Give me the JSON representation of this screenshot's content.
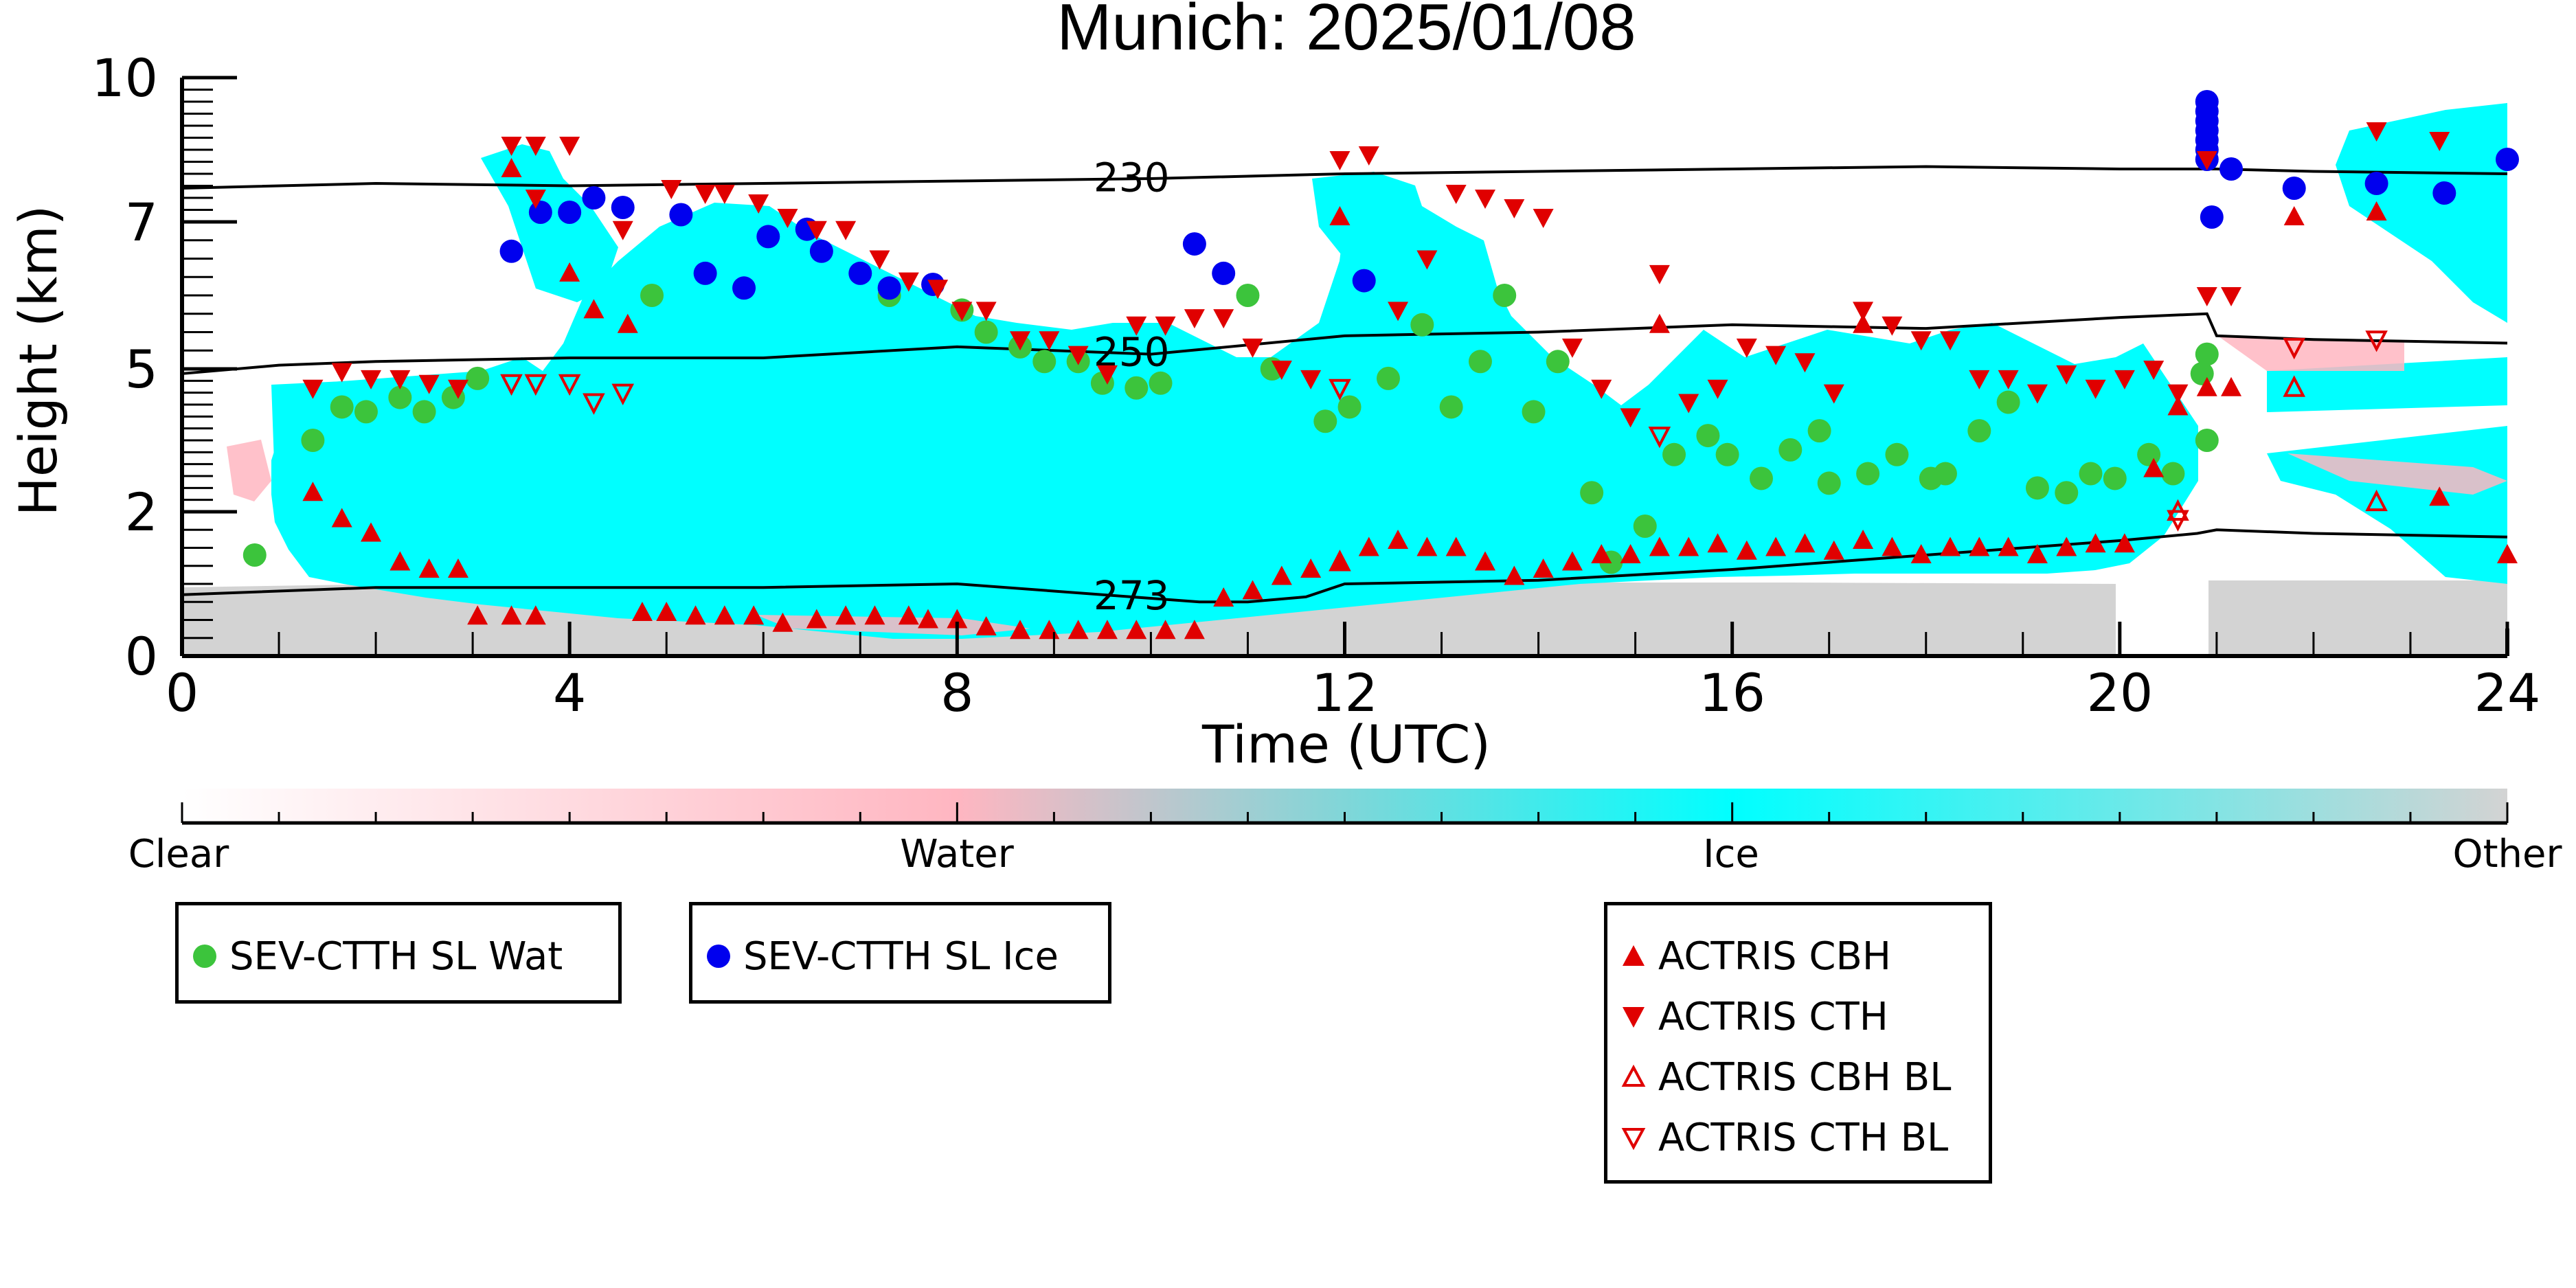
{
  "chart_data": {
    "type": "scatter",
    "title": "Munich: 2025/01/08",
    "xlabel": "Time (UTC)",
    "ylabel": "Height (km)",
    "xlim": [
      0,
      24
    ],
    "ylim": [
      0,
      10
    ],
    "x_ticks": [
      "0",
      "4",
      "8",
      "12",
      "16",
      "20",
      "24"
    ],
    "y_ticks": [
      "0",
      "2",
      "5",
      "7",
      "10"
    ],
    "y_tick_values": [
      0,
      2,
      5,
      7,
      10
    ],
    "colorbar": {
      "labels": [
        "Clear",
        "Water",
        "Ice",
        "Other"
      ],
      "colors": [
        "#ffffff",
        "#ffb6c1",
        "#00ffff",
        "#d3d3d3"
      ]
    },
    "contours": [
      {
        "label": "230",
        "x": [
          0,
          2,
          4,
          6,
          8,
          10,
          12,
          14,
          16,
          18,
          20,
          21,
          22,
          24
        ],
        "y": [
          7.7,
          7.8,
          7.75,
          7.8,
          7.85,
          7.9,
          8.0,
          8.05,
          8.1,
          8.15,
          8.1,
          8.1,
          8.05,
          8.0
        ]
      },
      {
        "label": "250",
        "x": [
          0,
          1,
          2,
          4,
          6,
          8,
          9,
          10,
          12,
          14,
          16,
          18,
          20,
          20.9,
          21,
          22,
          24
        ],
        "y": [
          4.9,
          5.05,
          5.1,
          5.15,
          5.15,
          5.3,
          5.25,
          5.2,
          5.45,
          5.5,
          5.6,
          5.55,
          5.7,
          5.75,
          5.45,
          5.4,
          5.35
        ]
      },
      {
        "label": "273",
        "x": [
          0,
          2,
          4,
          6,
          8,
          10,
          10.5,
          11,
          11.6,
          12,
          14,
          16,
          18,
          20,
          20.8,
          21,
          22,
          24
        ],
        "y": [
          0.85,
          0.95,
          0.95,
          0.95,
          1.0,
          0.8,
          0.75,
          0.75,
          0.82,
          1.0,
          1.05,
          1.2,
          1.4,
          1.6,
          1.7,
          1.75,
          1.7,
          1.65
        ]
      }
    ],
    "series": [
      {
        "name": "SEV-CTTH SL Wat",
        "color": "#3cc43c",
        "marker": "circle",
        "points": [
          [
            0.75,
            1.4
          ],
          [
            1.35,
            3.5
          ],
          [
            1.65,
            4.2
          ],
          [
            1.9,
            4.1
          ],
          [
            2.25,
            4.4
          ],
          [
            2.5,
            4.1
          ],
          [
            2.8,
            4.4
          ],
          [
            3.05,
            4.8
          ],
          [
            4.85,
            6.0
          ],
          [
            7.3,
            6.0
          ],
          [
            8.05,
            5.8
          ],
          [
            8.3,
            5.5
          ],
          [
            8.65,
            5.3
          ],
          [
            8.9,
            5.1
          ],
          [
            9.25,
            5.1
          ],
          [
            9.5,
            4.7
          ],
          [
            9.85,
            4.6
          ],
          [
            10.1,
            4.7
          ],
          [
            11.0,
            6.0
          ],
          [
            11.25,
            5.0
          ],
          [
            11.8,
            3.9
          ],
          [
            12.05,
            4.2
          ],
          [
            12.45,
            4.8
          ],
          [
            12.8,
            5.6
          ],
          [
            13.1,
            4.2
          ],
          [
            13.4,
            5.1
          ],
          [
            13.65,
            6.0
          ],
          [
            13.95,
            4.1
          ],
          [
            14.2,
            5.1
          ],
          [
            14.55,
            2.4
          ],
          [
            14.75,
            1.3
          ],
          [
            15.1,
            1.8
          ],
          [
            15.4,
            3.2
          ],
          [
            15.75,
            3.6
          ],
          [
            15.95,
            3.2
          ],
          [
            16.3,
            2.7
          ],
          [
            16.6,
            3.3
          ],
          [
            16.9,
            3.7
          ],
          [
            17.0,
            2.6
          ],
          [
            17.4,
            2.8
          ],
          [
            17.7,
            3.2
          ],
          [
            18.05,
            2.7
          ],
          [
            18.2,
            2.8
          ],
          [
            18.55,
            3.7
          ],
          [
            18.85,
            4.3
          ],
          [
            19.15,
            2.5
          ],
          [
            19.45,
            2.4
          ],
          [
            19.7,
            2.8
          ],
          [
            19.95,
            2.7
          ],
          [
            20.3,
            3.2
          ],
          [
            20.55,
            2.8
          ],
          [
            20.85,
            4.9
          ],
          [
            20.9,
            5.2
          ],
          [
            20.9,
            3.5
          ]
        ]
      },
      {
        "name": "SEV-CTTH SL Ice",
        "color": "#0000ee",
        "marker": "circle",
        "points": [
          [
            3.4,
            6.6
          ],
          [
            3.7,
            7.2
          ],
          [
            4.0,
            7.2
          ],
          [
            4.25,
            7.5
          ],
          [
            4.55,
            7.3
          ],
          [
            5.15,
            7.15
          ],
          [
            5.4,
            6.3
          ],
          [
            5.8,
            6.1
          ],
          [
            6.05,
            6.8
          ],
          [
            6.45,
            6.9
          ],
          [
            6.6,
            6.6
          ],
          [
            7.0,
            6.3
          ],
          [
            7.3,
            6.1
          ],
          [
            7.75,
            6.15
          ],
          [
            10.45,
            6.7
          ],
          [
            10.75,
            6.3
          ],
          [
            12.2,
            6.2
          ],
          [
            20.9,
            9.5
          ],
          [
            20.9,
            9.3
          ],
          [
            20.9,
            9.1
          ],
          [
            20.9,
            8.9
          ],
          [
            20.9,
            8.7
          ],
          [
            20.9,
            8.5
          ],
          [
            20.9,
            8.3
          ],
          [
            20.95,
            7.1
          ],
          [
            21.15,
            8.1
          ],
          [
            21.8,
            7.7
          ],
          [
            22.65,
            7.8
          ],
          [
            23.35,
            7.6
          ],
          [
            24.0,
            8.3
          ]
        ]
      },
      {
        "name": "ACTRIS CBH",
        "color": "#e00000",
        "marker": "triangle-up",
        "points": [
          [
            1.35,
            2.4
          ],
          [
            1.65,
            1.9
          ],
          [
            1.95,
            1.7
          ],
          [
            2.25,
            1.3
          ],
          [
            2.55,
            1.2
          ],
          [
            2.85,
            1.2
          ],
          [
            3.05,
            0.55
          ],
          [
            3.4,
            0.55
          ],
          [
            3.65,
            0.55
          ],
          [
            3.4,
            8.1
          ],
          [
            4.0,
            6.3
          ],
          [
            4.25,
            5.8
          ],
          [
            4.6,
            5.6
          ],
          [
            4.75,
            0.6
          ],
          [
            5.0,
            0.6
          ],
          [
            5.3,
            0.55
          ],
          [
            5.6,
            0.55
          ],
          [
            5.9,
            0.55
          ],
          [
            6.2,
            0.45
          ],
          [
            6.55,
            0.5
          ],
          [
            6.85,
            0.55
          ],
          [
            7.15,
            0.55
          ],
          [
            7.5,
            0.55
          ],
          [
            7.7,
            0.5
          ],
          [
            8.0,
            0.5
          ],
          [
            8.3,
            0.4
          ],
          [
            8.65,
            0.35
          ],
          [
            8.95,
            0.35
          ],
          [
            9.25,
            0.35
          ],
          [
            9.55,
            0.35
          ],
          [
            9.85,
            0.35
          ],
          [
            10.15,
            0.35
          ],
          [
            10.45,
            0.35
          ],
          [
            10.75,
            0.8
          ],
          [
            11.05,
            0.9
          ],
          [
            11.35,
            1.1
          ],
          [
            11.65,
            1.2
          ],
          [
            11.95,
            1.3
          ],
          [
            12.25,
            1.5
          ],
          [
            12.55,
            1.6
          ],
          [
            12.85,
            1.5
          ],
          [
            13.15,
            1.5
          ],
          [
            13.45,
            1.3
          ],
          [
            13.75,
            1.1
          ],
          [
            14.05,
            1.2
          ],
          [
            14.35,
            1.3
          ],
          [
            14.65,
            1.4
          ],
          [
            14.95,
            1.4
          ],
          [
            15.25,
            1.5
          ],
          [
            15.55,
            1.5
          ],
          [
            15.85,
            1.55
          ],
          [
            16.15,
            1.45
          ],
          [
            16.45,
            1.5
          ],
          [
            16.75,
            1.55
          ],
          [
            17.05,
            1.45
          ],
          [
            17.35,
            1.6
          ],
          [
            17.65,
            1.5
          ],
          [
            17.95,
            1.4
          ],
          [
            18.25,
            1.5
          ],
          [
            18.55,
            1.5
          ],
          [
            18.85,
            1.5
          ],
          [
            19.15,
            1.4
          ],
          [
            19.45,
            1.5
          ],
          [
            19.75,
            1.55
          ],
          [
            20.05,
            1.55
          ],
          [
            20.35,
            2.9
          ],
          [
            20.6,
            4.2
          ],
          [
            20.9,
            4.6
          ],
          [
            21.15,
            4.6
          ],
          [
            11.95,
            7.1
          ],
          [
            15.25,
            5.6
          ],
          [
            17.35,
            5.6
          ],
          [
            21.8,
            7.1
          ],
          [
            22.65,
            7.2
          ],
          [
            23.3,
            2.3
          ],
          [
            24.0,
            1.4
          ]
        ]
      },
      {
        "name": "ACTRIS CTH",
        "color": "#e00000",
        "marker": "triangle-down",
        "points": [
          [
            1.35,
            4.6
          ],
          [
            1.65,
            4.95
          ],
          [
            1.95,
            4.8
          ],
          [
            2.25,
            4.8
          ],
          [
            2.55,
            4.7
          ],
          [
            2.85,
            4.6
          ],
          [
            3.4,
            8.6
          ],
          [
            3.65,
            8.6
          ],
          [
            4.0,
            8.6
          ],
          [
            3.65,
            7.5
          ],
          [
            4.55,
            6.9
          ],
          [
            5.05,
            7.7
          ],
          [
            5.4,
            7.6
          ],
          [
            5.6,
            7.6
          ],
          [
            5.95,
            7.4
          ],
          [
            6.25,
            7.1
          ],
          [
            6.55,
            6.9
          ],
          [
            6.85,
            6.9
          ],
          [
            7.2,
            6.5
          ],
          [
            7.5,
            6.2
          ],
          [
            7.8,
            6.1
          ],
          [
            8.05,
            5.8
          ],
          [
            8.3,
            5.8
          ],
          [
            8.65,
            5.4
          ],
          [
            8.95,
            5.4
          ],
          [
            9.25,
            5.2
          ],
          [
            9.55,
            4.9
          ],
          [
            9.85,
            5.6
          ],
          [
            10.15,
            5.6
          ],
          [
            10.45,
            5.7
          ],
          [
            10.75,
            5.7
          ],
          [
            11.05,
            5.3
          ],
          [
            11.35,
            5.0
          ],
          [
            11.65,
            4.8
          ],
          [
            11.95,
            8.3
          ],
          [
            12.25,
            8.4
          ],
          [
            12.55,
            5.8
          ],
          [
            12.85,
            6.5
          ],
          [
            13.15,
            7.6
          ],
          [
            13.45,
            7.5
          ],
          [
            13.75,
            7.3
          ],
          [
            14.05,
            7.1
          ],
          [
            14.35,
            5.3
          ],
          [
            14.65,
            4.6
          ],
          [
            14.95,
            4.0
          ],
          [
            15.25,
            6.3
          ],
          [
            15.55,
            4.3
          ],
          [
            15.85,
            4.6
          ],
          [
            16.15,
            5.3
          ],
          [
            16.45,
            5.2
          ],
          [
            16.75,
            5.1
          ],
          [
            17.05,
            4.5
          ],
          [
            17.35,
            5.8
          ],
          [
            17.65,
            5.6
          ],
          [
            17.95,
            5.4
          ],
          [
            18.25,
            5.4
          ],
          [
            18.55,
            4.8
          ],
          [
            18.85,
            4.8
          ],
          [
            19.15,
            4.5
          ],
          [
            19.45,
            4.9
          ],
          [
            19.75,
            4.6
          ],
          [
            20.05,
            4.8
          ],
          [
            20.35,
            5.0
          ],
          [
            20.6,
            4.5
          ],
          [
            20.9,
            8.3
          ],
          [
            20.9,
            6.0
          ],
          [
            21.15,
            6.0
          ],
          [
            22.65,
            8.9
          ],
          [
            23.3,
            8.7
          ]
        ]
      },
      {
        "name": "ACTRIS CBH BL",
        "color": "#e00000",
        "marker": "triangle-up-open",
        "points": [
          [
            11.95,
            1.3
          ],
          [
            20.6,
            2.0
          ],
          [
            21.8,
            4.6
          ],
          [
            22.65,
            2.2
          ]
        ]
      },
      {
        "name": "ACTRIS CTH BL",
        "color": "#e00000",
        "marker": "triangle-down-open",
        "points": [
          [
            3.4,
            4.7
          ],
          [
            3.65,
            4.7
          ],
          [
            4.0,
            4.7
          ],
          [
            4.25,
            4.3
          ],
          [
            4.55,
            4.5
          ],
          [
            11.95,
            4.6
          ],
          [
            15.25,
            3.6
          ],
          [
            20.6,
            1.9
          ],
          [
            21.8,
            5.3
          ],
          [
            22.65,
            5.4
          ]
        ]
      }
    ]
  },
  "legend": {
    "sev": [
      {
        "label": "SEV-CTTH SL Wat",
        "color": "#3cc43c",
        "marker": "circle"
      }
    ],
    "sev_ice": [
      {
        "label": "SEV-CTTH SL Ice",
        "color": "#0000ee",
        "marker": "circle"
      }
    ],
    "actris": [
      {
        "label": "ACTRIS CBH",
        "color": "#e00000",
        "marker": "triangle-up"
      },
      {
        "label": "ACTRIS CTH",
        "color": "#e00000",
        "marker": "triangle-down"
      },
      {
        "label": "ACTRIS CBH BL",
        "color": "#e00000",
        "marker": "triangle-up-open"
      },
      {
        "label": "ACTRIS CTH BL",
        "color": "#e00000",
        "marker": "triangle-down-open"
      }
    ]
  }
}
